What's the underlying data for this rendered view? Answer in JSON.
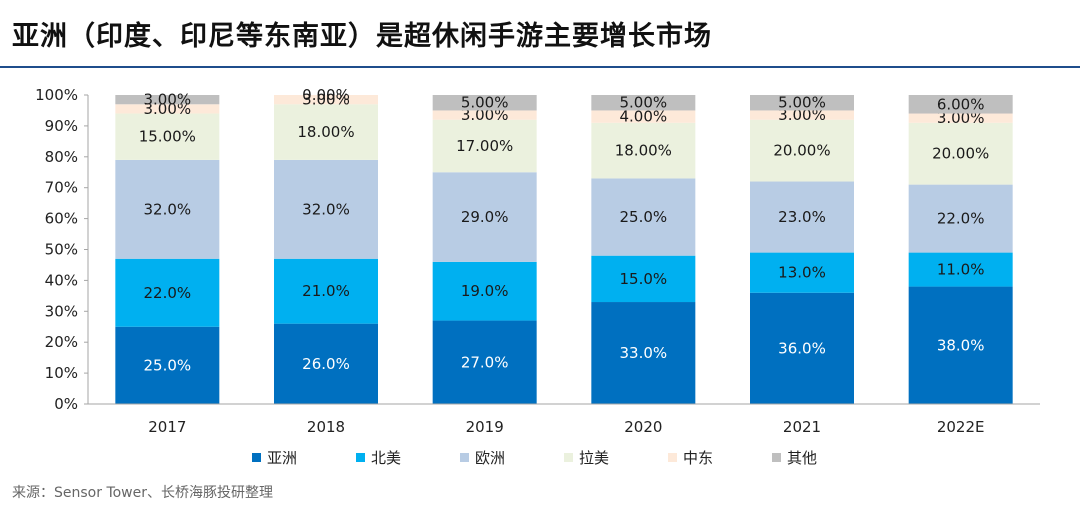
{
  "title": "亚洲（印度、印尼等东南亚）是超休闲手游主要增长市场",
  "source": "来源：Sensor Tower、长桥海豚投研整理",
  "chart_data": {
    "type": "bar",
    "stacked": true,
    "categories": [
      "2017",
      "2018",
      "2019",
      "2020",
      "2021",
      "2022E"
    ],
    "ylim": [
      0,
      100
    ],
    "yticks": [
      "0%",
      "10%",
      "20%",
      "30%",
      "40%",
      "50%",
      "60%",
      "70%",
      "80%",
      "90%",
      "100%"
    ],
    "legend_position": "bottom",
    "series": [
      {
        "name": "亚洲",
        "color": "#0070c0",
        "label_color": "#ffffff",
        "values": [
          25,
          26,
          27,
          33,
          36,
          38
        ],
        "labels": [
          "25.0%",
          "26.0%",
          "27.0%",
          "33.0%",
          "36.0%",
          "38.0%"
        ]
      },
      {
        "name": "北美",
        "color": "#00b0f0",
        "label_color": "#1a1a1a",
        "values": [
          22,
          21,
          19,
          15,
          13,
          11
        ],
        "labels": [
          "22.0%",
          "21.0%",
          "19.0%",
          "15.0%",
          "13.0%",
          "11.0%"
        ]
      },
      {
        "name": "欧洲",
        "color": "#b8cce4",
        "label_color": "#1a1a1a",
        "values": [
          32,
          32,
          29,
          25,
          23,
          22
        ],
        "labels": [
          "32.0%",
          "32.0%",
          "29.0%",
          "25.0%",
          "23.0%",
          "22.0%"
        ]
      },
      {
        "name": "拉美",
        "color": "#ebf1de",
        "label_color": "#1a1a1a",
        "values": [
          15,
          18,
          17,
          18,
          20,
          20
        ],
        "labels": [
          "15.00%",
          "18.00%",
          "17.00%",
          "18.00%",
          "20.00%",
          "20.00%"
        ]
      },
      {
        "name": "中东",
        "color": "#fde9d9",
        "label_color": "#1a1a1a",
        "values": [
          3,
          3,
          3,
          4,
          3,
          3
        ],
        "labels": [
          "3.00%",
          "3.00%",
          "3.00%",
          "4.00%",
          "3.00%",
          "3.00%"
        ]
      },
      {
        "name": "其他",
        "color": "#bfbfbf",
        "label_color": "#1a1a1a",
        "values": [
          3,
          0,
          5,
          5,
          5,
          6
        ],
        "labels": [
          "3.00%",
          "0.00%",
          "5.00%",
          "5.00%",
          "5.00%",
          "6.00%"
        ]
      }
    ]
  }
}
